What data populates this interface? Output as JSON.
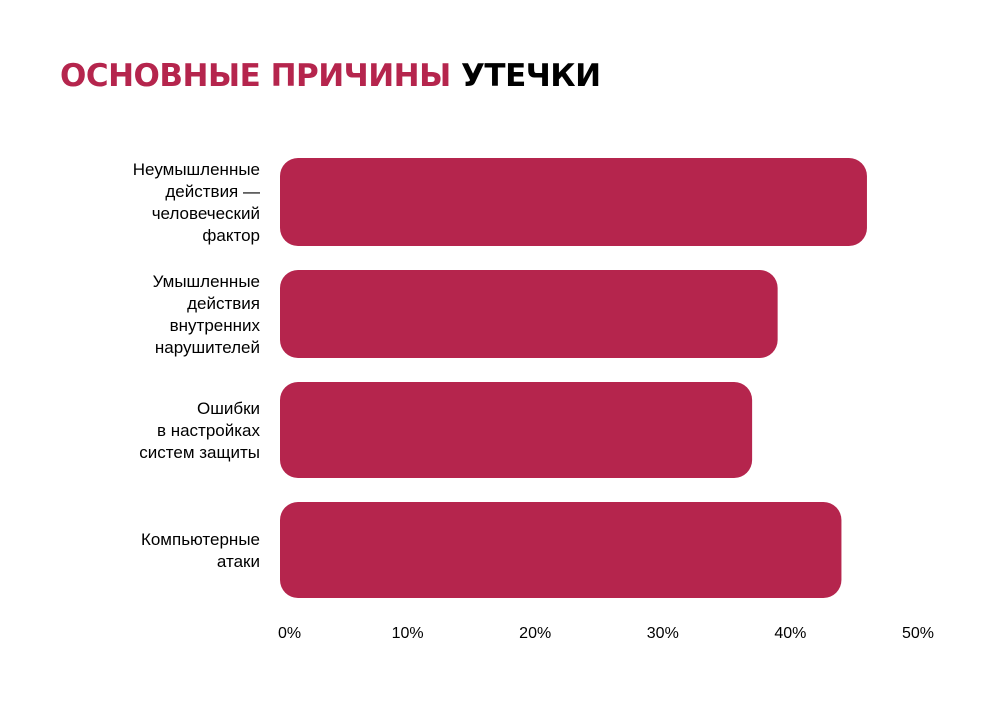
{
  "title": {
    "accent_text": "ОСНОВНЫЕ ПРИЧИНЫ",
    "dark_text": "УТЕЧКИ"
  },
  "colors": {
    "accent": "#b5254d",
    "bar": "#b5254d",
    "text": "#000000",
    "background": "#ffffff"
  },
  "chart_data": {
    "type": "bar",
    "orientation": "horizontal",
    "title": "ОСНОВНЫЕ ПРИЧИНЫ УТЕЧКИ",
    "categories": [
      "Неумышленные действия — человеческий фактор",
      "Умышленные действия внутренних нарушителей",
      "Ошибки в настройках систем защиты",
      "Компьютерные атаки"
    ],
    "category_lines": [
      [
        "Неумышленные",
        "действия —",
        "человеческий",
        "фактор"
      ],
      [
        "Умышленные",
        "действия",
        "внутренних",
        "нарушителей"
      ],
      [
        "Ошибки",
        "в настройках",
        "систем защиты"
      ],
      [
        "Компьютерные",
        "атаки"
      ]
    ],
    "values": [
      46,
      39,
      37,
      44
    ],
    "xlim": [
      0,
      50
    ],
    "x_ticks": [
      "0%",
      "10%",
      "20%",
      "30%",
      "40%",
      "50%"
    ],
    "xlabel": "",
    "ylabel": "",
    "grid": false,
    "legend": "none"
  }
}
